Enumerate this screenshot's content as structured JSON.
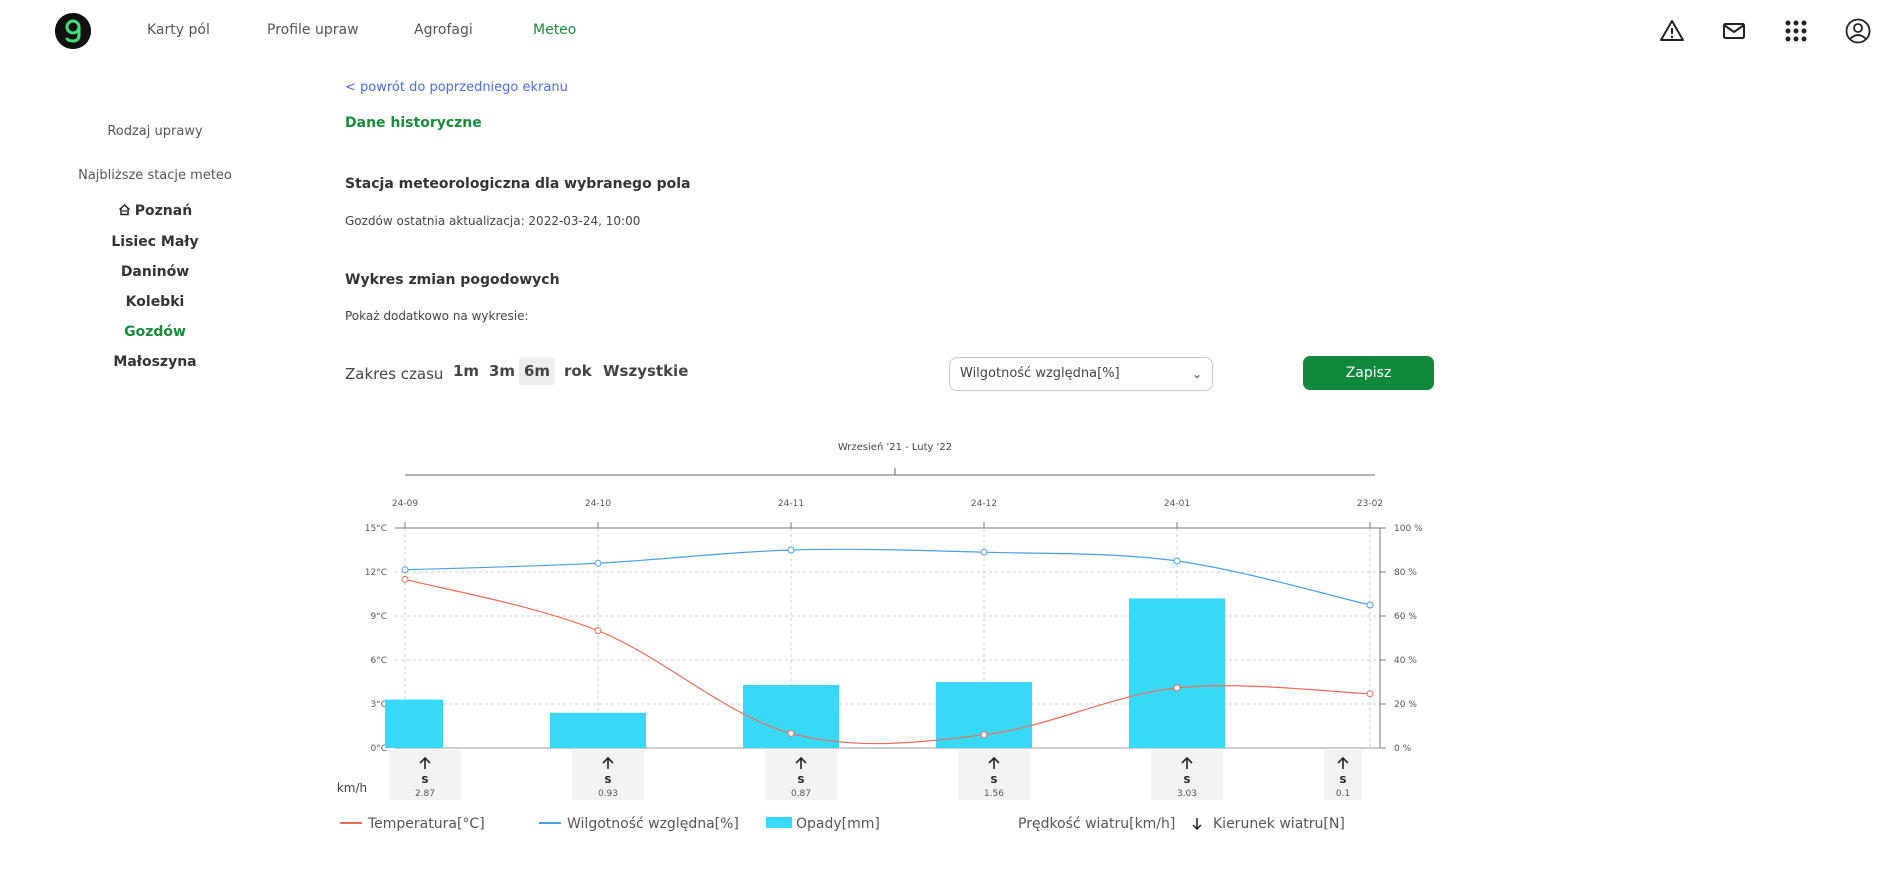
{
  "nav": {
    "items": [
      {
        "label": "Karty pól",
        "active": false
      },
      {
        "label": "Profile upraw",
        "active": false
      },
      {
        "label": "Agrofagi",
        "active": false
      },
      {
        "label": "Meteo",
        "active": true
      }
    ],
    "icons": [
      "warning-icon",
      "mail-icon",
      "apps-grid-icon",
      "user-icon"
    ]
  },
  "sidebar": {
    "crop_type_label": "Rodzaj uprawy",
    "stations_label": "Najbliższe stacje meteo",
    "stations": [
      {
        "label": "Poznań",
        "home": true,
        "active": false
      },
      {
        "label": "Lisiec Mały",
        "active": false
      },
      {
        "label": "Daninów",
        "active": false
      },
      {
        "label": "Kolebki",
        "active": false
      },
      {
        "label": "Gozdów",
        "active": true
      },
      {
        "label": "Małoszyna",
        "active": false
      }
    ]
  },
  "main": {
    "back_link": "< powrót do poprzedniego ekranu",
    "section_title": "Dane historyczne",
    "station_heading": "Stacja meteorologiczna dla wybranego pola",
    "last_update": "Gozdów ostatnia aktualizacja: 2022-03-24, 10:00",
    "chart_heading": "Wykres zmian pogodowych",
    "show_more_label": "Pokaż dodatkowo na wykresie:",
    "range_label": "Zakres czasu",
    "range_options": [
      "1m",
      "3m",
      "6m",
      "rok",
      "Wszystkie"
    ],
    "range_selected": "6m",
    "dropdown_value": "Wilgotność względna[%]",
    "save_label": "Zapisz"
  },
  "colors": {
    "brand_green": "#1a8a3c",
    "button_green": "#0f8a3d",
    "temperature": "#f06b5b",
    "humidity": "#4a9fe0",
    "precipitation": "#38d8f8",
    "link": "#4a6ee0"
  },
  "chart_data": {
    "type": "bar+line",
    "period_label": "Wrzesień '21 - Luty '22",
    "categories": [
      "24-09",
      "24-10",
      "24-11",
      "24-12",
      "24-01",
      "23-02"
    ],
    "y_left": {
      "unit": "°C",
      "ylim": [
        0,
        15
      ],
      "ticks": [
        "0°C",
        "3°C",
        "6°C",
        "9°C",
        "12°C",
        "15°C"
      ]
    },
    "y_right": {
      "unit": "%",
      "ylim": [
        0,
        100
      ],
      "ticks": [
        "0 %",
        "20 %",
        "40 %",
        "60 %",
        "80 %",
        "100 %"
      ]
    },
    "series": [
      {
        "name": "Temperatura[°C]",
        "kind": "line",
        "axis": "left",
        "color": "#f06b5b",
        "values": [
          11.5,
          8.0,
          1.0,
          0.9,
          4.1,
          3.7
        ]
      },
      {
        "name": "Wilgotność względna[%]",
        "kind": "line",
        "axis": "right",
        "color": "#4a9fe0",
        "values": [
          81,
          84,
          90,
          89,
          85,
          65
        ]
      },
      {
        "name": "Opady[mm]",
        "kind": "bar",
        "axis": "left",
        "color": "#38d8f8",
        "values": [
          3.3,
          2.4,
          4.3,
          4.5,
          10.2,
          null
        ]
      }
    ],
    "wind": {
      "unit_label": "km/h",
      "direction": [
        "S",
        "S",
        "S",
        "S",
        "S",
        "S"
      ],
      "speed": [
        "2.87",
        "0.93",
        "0.87",
        "1.56",
        "3.03",
        "0.1"
      ]
    },
    "legend": [
      {
        "label": "Temperatura[°C]",
        "kind": "line",
        "color": "#f06b5b"
      },
      {
        "label": "Wilgotność względna[%]",
        "kind": "line",
        "color": "#4a9fe0"
      },
      {
        "label": "Opady[mm]",
        "kind": "bar",
        "color": "#38d8f8"
      },
      {
        "label": "Prędkość wiatru[km/h]",
        "kind": "text"
      },
      {
        "label": "Kierunek wiatru[N]",
        "kind": "arrow"
      }
    ],
    "grid": true,
    "legend_position": "bottom"
  }
}
